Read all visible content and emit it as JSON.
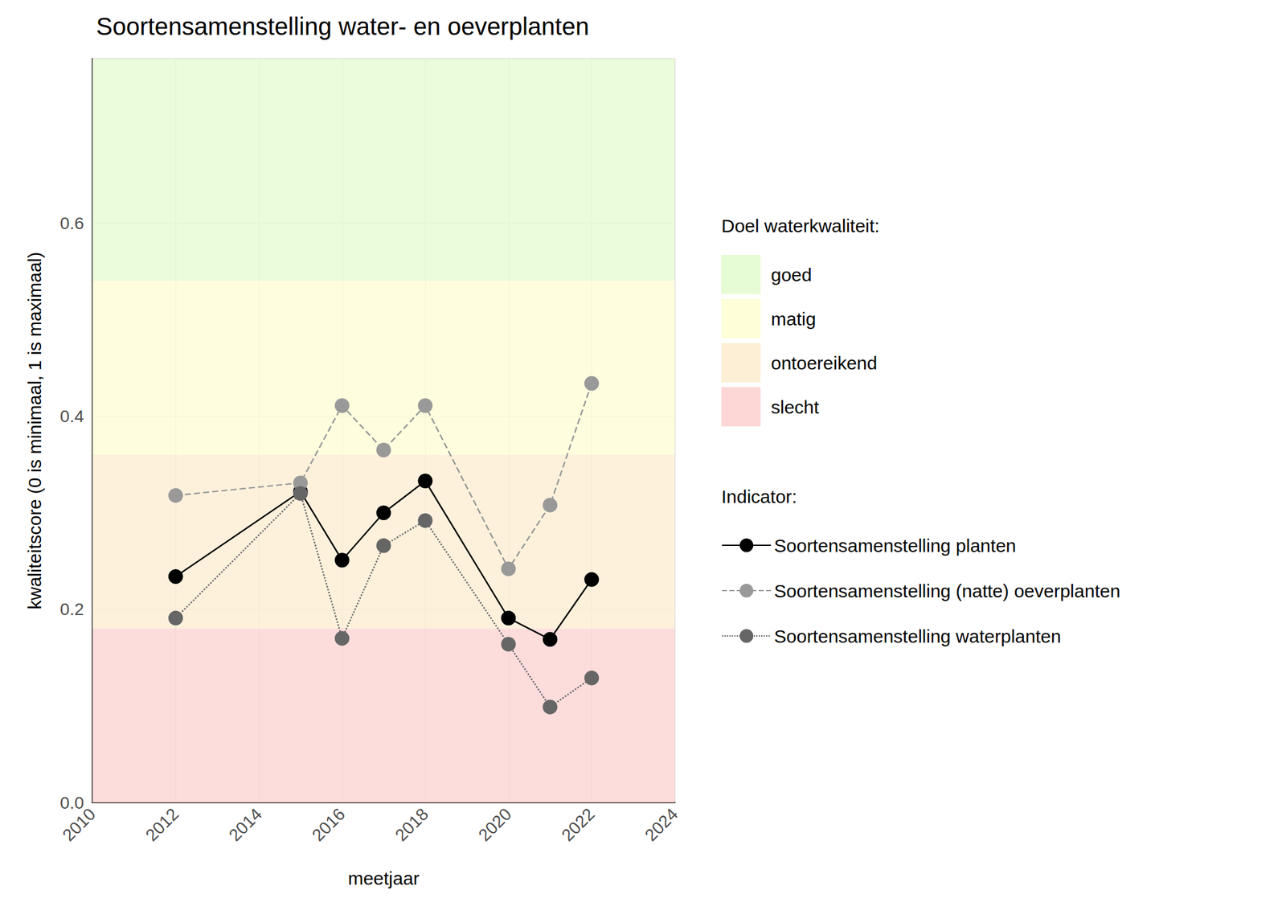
{
  "chart_data": {
    "type": "line",
    "title": "Soortensamenstelling water- en oeverplanten",
    "x_label": "meetjaar",
    "y_label": "kwaliteitscore (0 is minimaal, 1 is maximaal)",
    "x": [
      2012,
      2015,
      2016,
      2017,
      2018,
      2020,
      2021,
      2022
    ],
    "series": [
      {
        "name": "Soortensamenstelling planten",
        "color": "#000000",
        "marker": "circle",
        "line_style": "solid",
        "values": [
          0.234,
          0.322,
          0.251,
          0.3,
          0.333,
          0.191,
          0.169,
          0.231
        ]
      },
      {
        "name": "Soortensamenstelling (natte) oeverplanten",
        "color": "#999999",
        "marker": "circle",
        "line_style": "dashed",
        "values": [
          0.318,
          0.331,
          0.411,
          0.365,
          0.411,
          0.242,
          0.308,
          0.434
        ]
      },
      {
        "name": "Soortensamenstelling waterplanten",
        "color": "#666666",
        "marker": "circle",
        "line_style": "dotted",
        "values": [
          0.191,
          0.32,
          0.17,
          0.266,
          0.292,
          0.164,
          0.099,
          0.129
        ]
      }
    ],
    "xlim": [
      2010,
      2024
    ],
    "xticks": [
      2010,
      2012,
      2014,
      2016,
      2018,
      2020,
      2022,
      2024
    ],
    "ylim": [
      0,
      0.77
    ],
    "yticks": [
      {
        "value": 0,
        "label": "0.0"
      },
      0.2,
      0.4,
      0.6
    ],
    "grid": true,
    "legend": "right",
    "legend_titles": [
      "Doel waterkwaliteit:",
      "Indicator:"
    ],
    "bands": [
      {
        "name": "goed",
        "from": 0.54,
        "to": 0.77,
        "color": "#e6fcd4"
      },
      {
        "name": "matig",
        "from": 0.36,
        "to": 0.54,
        "color": "#fefed8"
      },
      {
        "name": "ontoereikend",
        "from": 0.18,
        "to": 0.36,
        "color": "#fdefd6"
      },
      {
        "name": "slecht",
        "from": 0,
        "to": 0.18,
        "color": "#fdd6d6"
      }
    ]
  }
}
